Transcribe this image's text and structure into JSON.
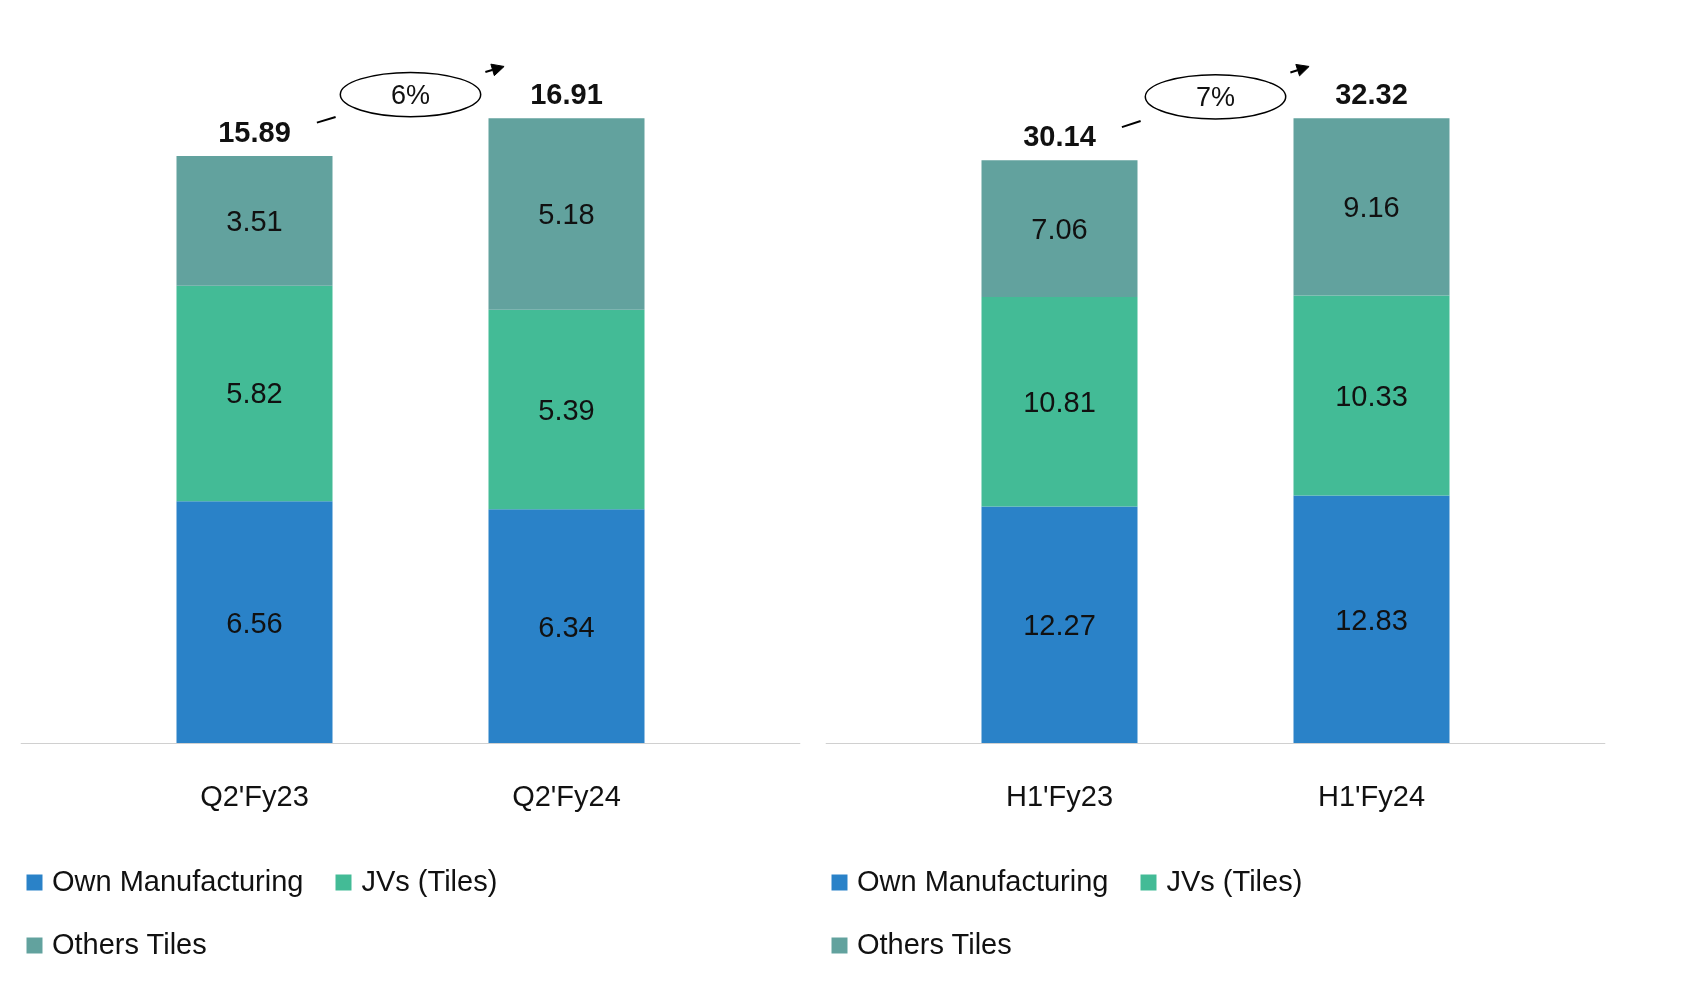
{
  "chart_data": [
    {
      "type": "bar",
      "stacked": true,
      "categories": [
        "Q2'Fy23",
        "Q2'Fy24"
      ],
      "data_labels": true,
      "totals": [
        "15.89",
        "16.91"
      ],
      "annotations": [
        "6%"
      ],
      "legend": "bottom",
      "grid": false,
      "series": [
        {
          "name": "Own Manufacturing",
          "color": "#2a82c8",
          "values": [
            6.56,
            6.34
          ]
        },
        {
          "name": "JVs (Tiles)",
          "color": "#43bb96",
          "values": [
            5.82,
            5.39
          ]
        },
        {
          "name": "Others Tiles",
          "color": "#62a29e",
          "values": [
            3.51,
            5.18
          ]
        }
      ]
    },
    {
      "type": "bar",
      "stacked": true,
      "categories": [
        "H1'Fy23",
        "H1'Fy24"
      ],
      "data_labels": true,
      "totals": [
        "30.14",
        "32.32"
      ],
      "annotations": [
        "7%"
      ],
      "legend": "bottom",
      "grid": false,
      "series": [
        {
          "name": "Own Manufacturing",
          "color": "#2a82c8",
          "values": [
            12.27,
            12.83
          ]
        },
        {
          "name": "JVs (Tiles)",
          "color": "#43bb96",
          "values": [
            10.81,
            10.33
          ]
        },
        {
          "name": "Others Tiles",
          "color": "#62a29e",
          "values": [
            7.06,
            9.16
          ]
        }
      ]
    }
  ]
}
